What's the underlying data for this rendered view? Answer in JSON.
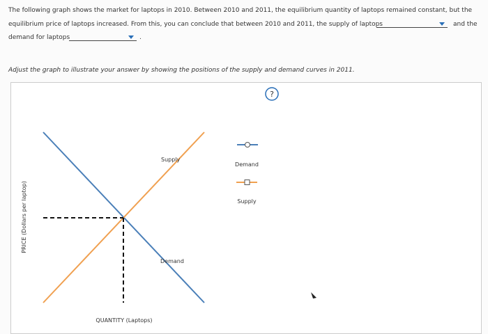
{
  "question": {
    "line_1": "The following graph shows the market for laptops in 2010. Between 2010 and 2011, the equilibrium quantity of laptops remained constant, but the",
    "line_2": "equilibrium price of laptops increased. From this, you can conclude that between 2010 and 2011, the supply of laptops",
    "line_2_end": "and the",
    "line_3": "demand for laptops",
    "line_3_end": "."
  },
  "instruction": "Adjust the graph to illustrate your answer by showing the positions of the supply and demand curves in 2011.",
  "help": "?",
  "graph": {
    "supply_curve_label": "Supply",
    "demand_curve_label": "Demand",
    "palette": [
      {
        "label": "Demand"
      },
      {
        "label": "Supply"
      }
    ],
    "y_axis_label": "PRICE (Dollars per laptop)",
    "x_axis_label": "QUANTITY (Laptops)"
  }
}
